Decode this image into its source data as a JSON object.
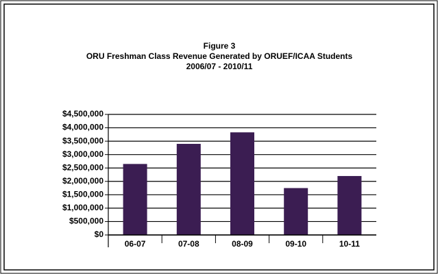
{
  "chart_data": {
    "type": "bar",
    "title": [
      "Figure 3",
      "ORU Freshman Class Revenue Generated by ORUEF/ICAA Students",
      "2006/07  -  2010/11"
    ],
    "categories": [
      "06-07",
      "07-08",
      "08-09",
      "09-10",
      "10-11"
    ],
    "values": [
      2650000,
      3400000,
      3830000,
      1750000,
      2200000
    ],
    "color": "#3b1d52",
    "ylim": [
      0,
      4500000
    ],
    "yticks": [
      {
        "value": 0,
        "label": "$0"
      },
      {
        "value": 500000,
        "label": "$500,000"
      },
      {
        "value": 1000000,
        "label": "$1,000,000"
      },
      {
        "value": 1500000,
        "label": "$1,500,000"
      },
      {
        "value": 2000000,
        "label": "$2,000,000"
      },
      {
        "value": 2500000,
        "label": "$2,500,000"
      },
      {
        "value": 3000000,
        "label": "$3,000,000"
      },
      {
        "value": 3500000,
        "label": "$3,500,000"
      },
      {
        "value": 4000000,
        "label": "$4,000,000"
      },
      {
        "value": 4500000,
        "label": "$4,500,000"
      }
    ],
    "grid": true
  }
}
